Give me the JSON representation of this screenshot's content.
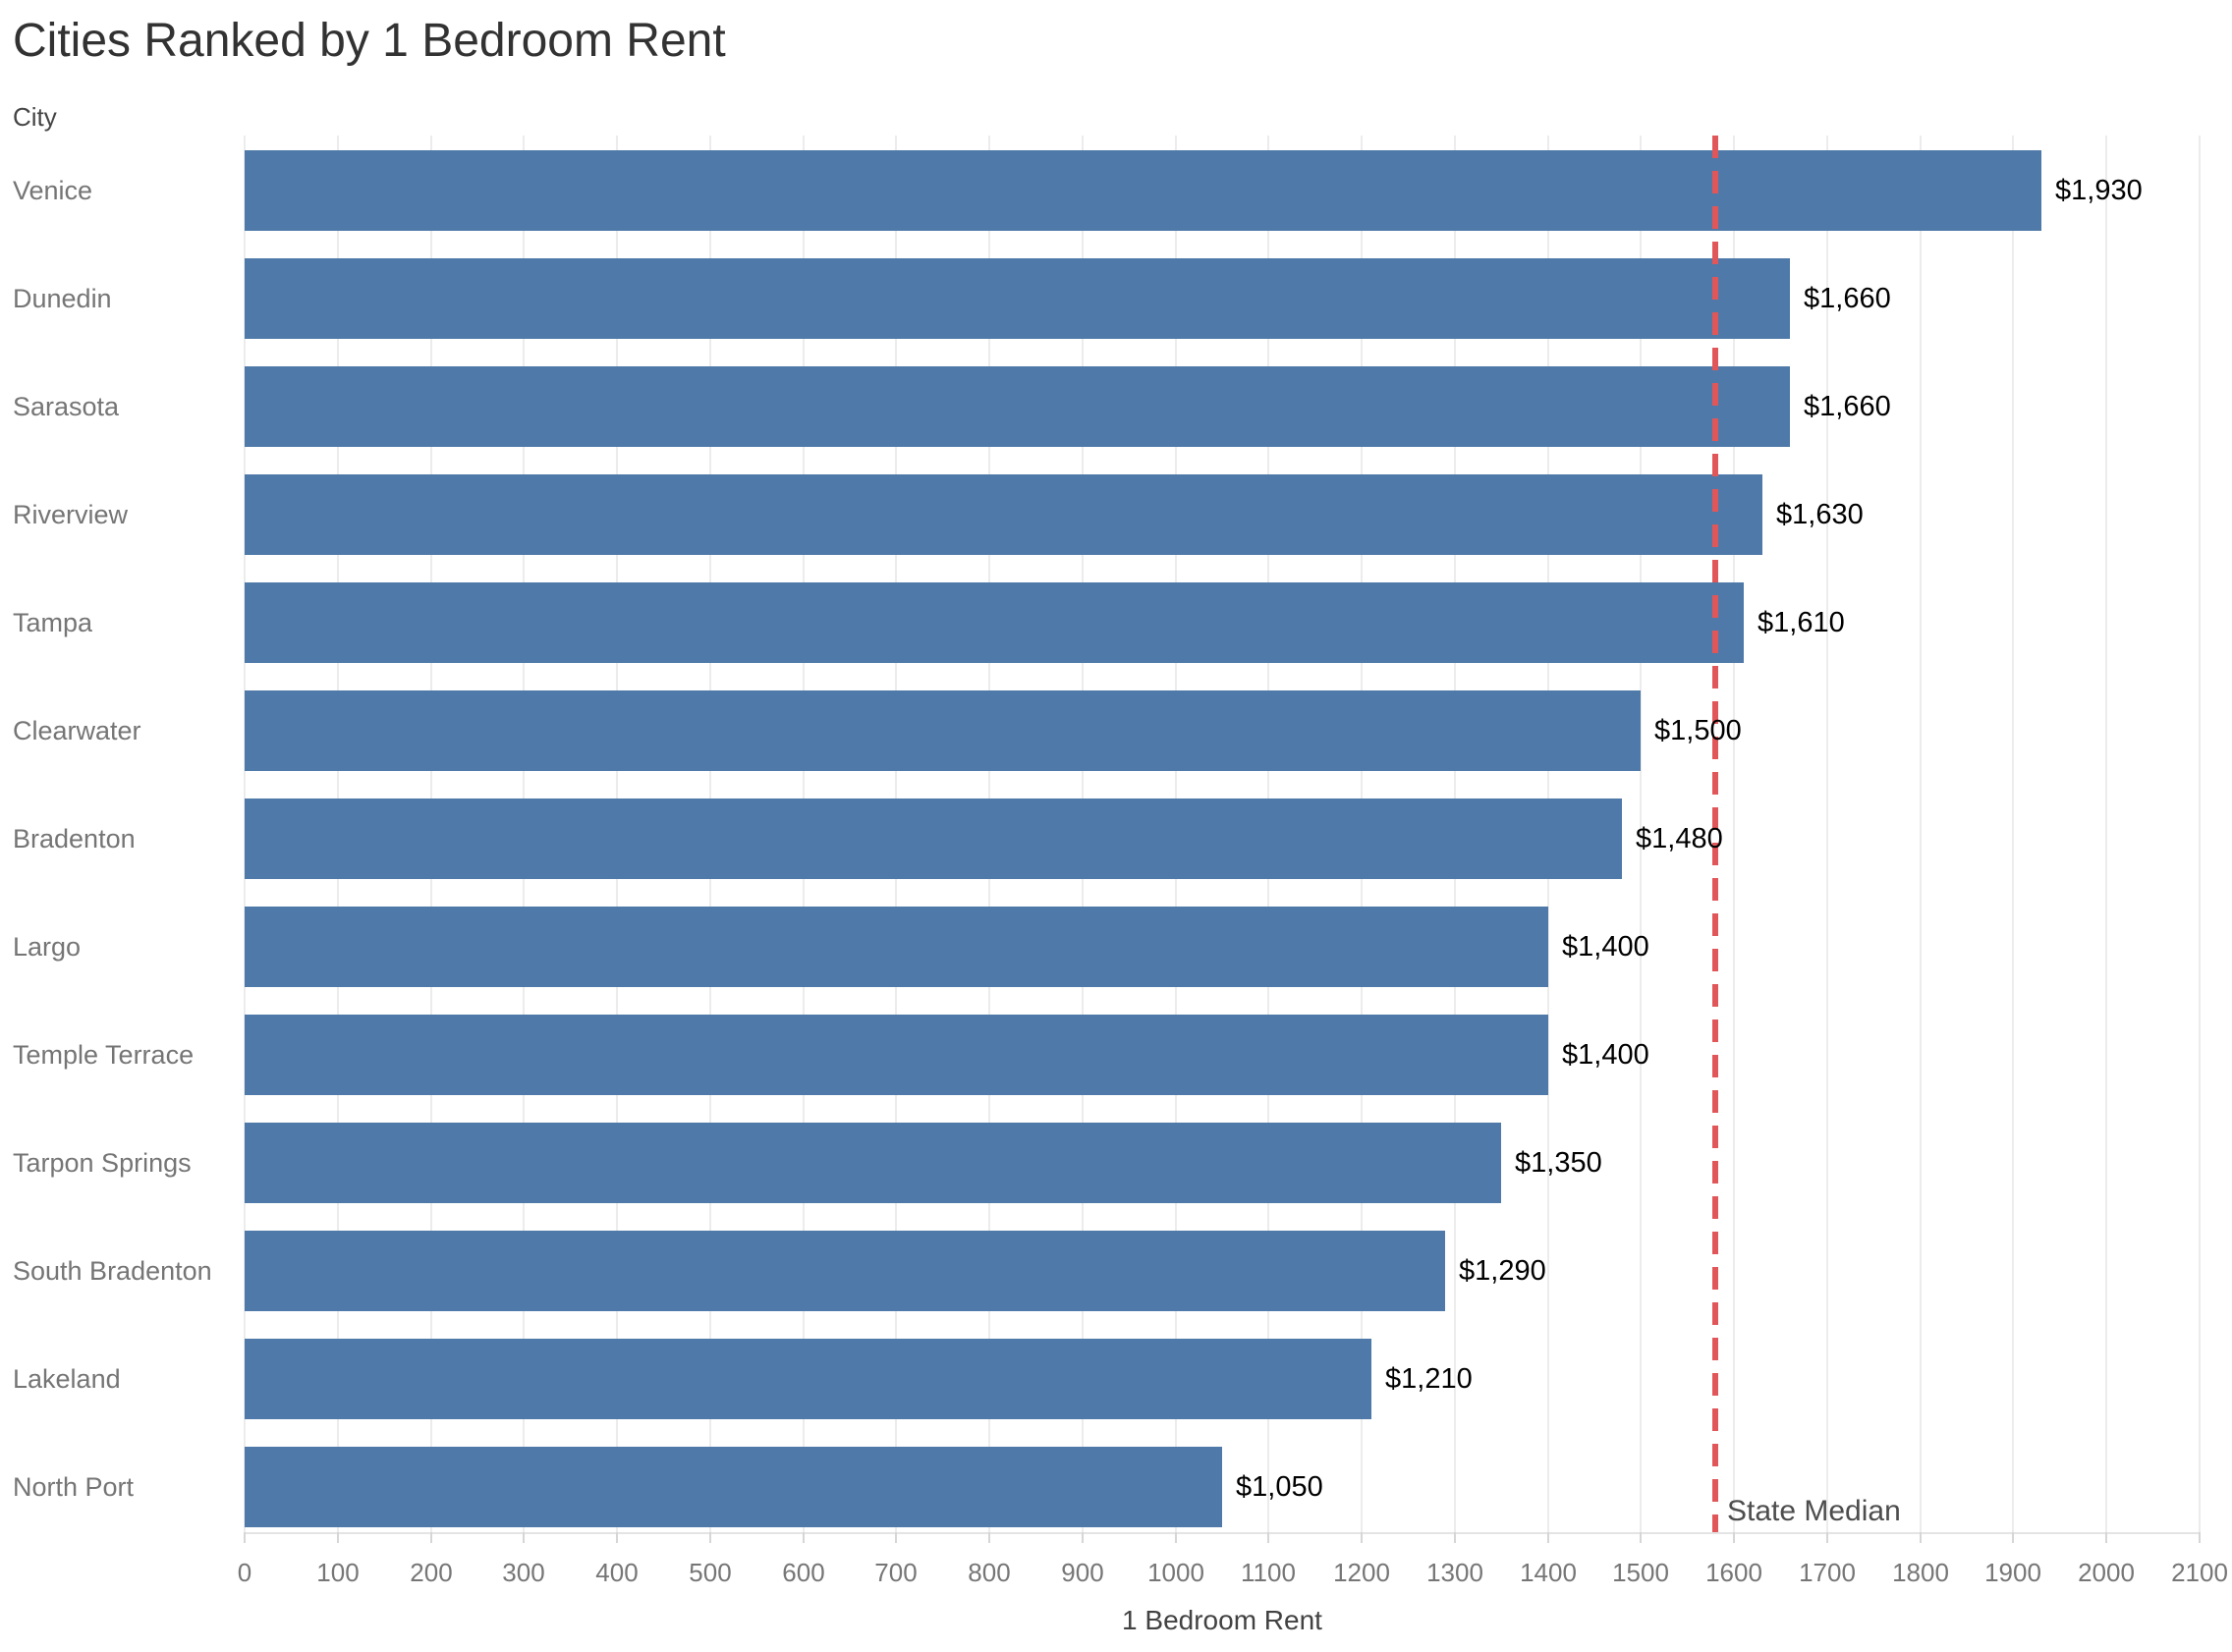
{
  "title": "Cities Ranked by 1 Bedroom Rent",
  "row_header": "City",
  "chart_data": {
    "type": "bar",
    "orientation": "horizontal",
    "title": "Cities Ranked by 1 Bedroom Rent",
    "categories": [
      "Venice",
      "Dunedin",
      "Sarasota",
      "Riverview",
      "Tampa",
      "Clearwater",
      "Bradenton",
      "Largo",
      "Temple Terrace",
      "Tarpon Springs",
      "South Bradenton",
      "Lakeland",
      "North Port"
    ],
    "values": [
      1930,
      1660,
      1660,
      1630,
      1610,
      1500,
      1480,
      1400,
      1400,
      1350,
      1290,
      1210,
      1050
    ],
    "value_labels": [
      "$1,930",
      "$1,660",
      "$1,660",
      "$1,630",
      "$1,610",
      "$1,500",
      "$1,480",
      "$1,400",
      "$1,400",
      "$1,350",
      "$1,290",
      "$1,210",
      "$1,050"
    ],
    "xlabel": "1 Bedroom Rent",
    "ylabel": "City",
    "xlim": [
      0,
      2100
    ],
    "x_ticks": [
      0,
      100,
      200,
      300,
      400,
      500,
      600,
      700,
      800,
      900,
      1000,
      1100,
      1200,
      1300,
      1400,
      1500,
      1600,
      1700,
      1800,
      1900,
      2000,
      2100
    ],
    "grid": true,
    "bar_color": "#4e79a8",
    "reference_line": {
      "label": "State Median",
      "value": 1580,
      "color": "#e15759",
      "style": "dashed"
    }
  }
}
